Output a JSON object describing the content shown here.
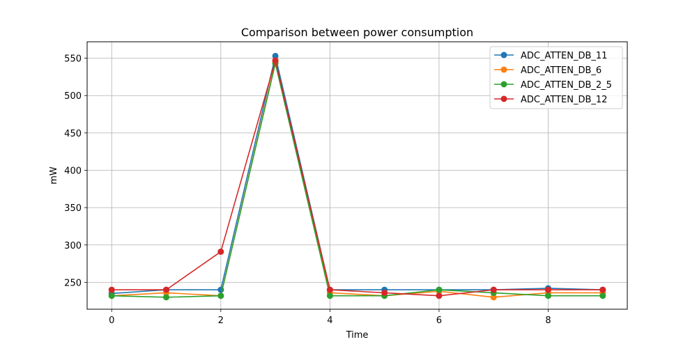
{
  "chart_data": {
    "type": "line",
    "title": "Comparison between power consumption",
    "xlabel": "Time",
    "ylabel": "mW",
    "xlim": [
      -0.45,
      9.45
    ],
    "ylim": [
      214,
      572
    ],
    "x_ticks": [
      0,
      2,
      4,
      6,
      8
    ],
    "y_ticks": [
      250,
      300,
      350,
      400,
      450,
      500,
      550
    ],
    "grid": true,
    "legend_position": "top-right",
    "x": [
      0,
      1,
      2,
      3,
      4,
      5,
      6,
      7,
      8,
      9
    ],
    "series": [
      {
        "name": "ADC_ATTEN_DB_11",
        "color": "#1f77b4",
        "values": [
          235,
          240,
          240,
          553,
          240,
          240,
          240,
          240,
          242,
          240
        ]
      },
      {
        "name": "ADC_ATTEN_DB_6",
        "color": "#ff7f0e",
        "values": [
          232,
          236,
          232,
          545,
          236,
          232,
          238,
          230,
          236,
          236
        ]
      },
      {
        "name": "ADC_ATTEN_DB_2_5",
        "color": "#2ca02c",
        "values": [
          232,
          230,
          232,
          543,
          232,
          232,
          240,
          236,
          232,
          232
        ]
      },
      {
        "name": "ADC_ATTEN_DB_12",
        "color": "#d62728",
        "values": [
          240,
          240,
          291,
          547,
          240,
          236,
          232,
          240,
          240,
          240
        ]
      }
    ]
  }
}
